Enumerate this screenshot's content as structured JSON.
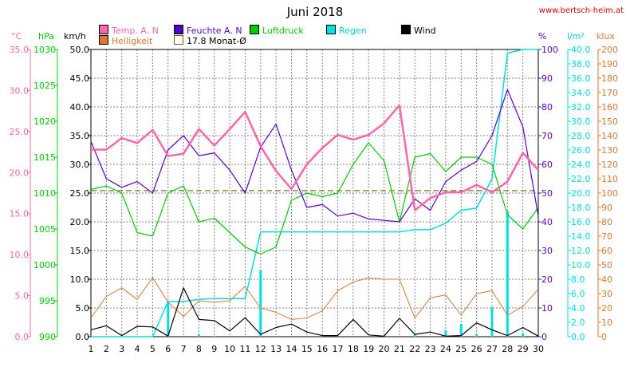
{
  "header": {
    "title": "Juni 2018",
    "url": "www.bertsch-heim.at"
  },
  "colors": {
    "temp": "#ff66aa",
    "humidity": "#5500cc",
    "pressure": "#00cc00",
    "rain": "#00e0e0",
    "wind": "#000000",
    "brightness": "#dd7733",
    "avg": "#666600",
    "grid": "#808080"
  },
  "chart_data": {
    "type": "line",
    "title": "Juni 2018",
    "x": [
      1,
      2,
      3,
      4,
      5,
      6,
      7,
      8,
      9,
      10,
      11,
      12,
      13,
      14,
      15,
      16,
      17,
      18,
      19,
      20,
      21,
      22,
      23,
      24,
      25,
      26,
      27,
      28,
      29,
      30
    ],
    "axes": {
      "temp": {
        "unit": "°C",
        "min": 0,
        "max": 35,
        "step": 5,
        "ticks": [
          "0.0",
          "5.0",
          "10.0",
          "15.0",
          "20.0",
          "25.0",
          "30.0",
          "35.0"
        ]
      },
      "pressure": {
        "unit": "hPa",
        "min": 990,
        "max": 1030,
        "step": 5,
        "ticks": [
          "990",
          "995",
          "1000",
          "1005",
          "1010",
          "1015",
          "1020",
          "1025",
          "1030"
        ]
      },
      "wind": {
        "unit": "km/h",
        "min": 0,
        "max": 50,
        "step": 5,
        "ticks": [
          "0.0",
          "5.0",
          "10.0",
          "15.0",
          "20.0",
          "25.0",
          "30.0",
          "35.0",
          "40.0",
          "45.0",
          "50.0"
        ]
      },
      "humidity": {
        "unit": "%",
        "min": 0,
        "max": 100,
        "step": 10,
        "ticks": [
          "0",
          "10",
          "20",
          "30",
          "40",
          "50",
          "60",
          "70",
          "80",
          "90",
          "100"
        ]
      },
      "rain": {
        "unit": "l/m²",
        "min": 0,
        "max": 40,
        "step": 2,
        "ticks": [
          "0.0",
          "2.0",
          "4.0",
          "6.0",
          "8.0",
          "10.0",
          "12.0",
          "14.0",
          "16.0",
          "18.0",
          "20.0",
          "22.0",
          "24.0",
          "26.0",
          "28.0",
          "30.0",
          "32.0",
          "34.0",
          "36.0",
          "38.0",
          "40.0"
        ]
      },
      "brightness": {
        "unit": "klux",
        "min": 0,
        "max": 200,
        "step": 10,
        "ticks": [
          "0",
          "10",
          "20",
          "30",
          "40",
          "50",
          "60",
          "70",
          "80",
          "90",
          "100",
          "110",
          "120",
          "130",
          "140",
          "150",
          "160",
          "170",
          "180",
          "190",
          "200"
        ]
      }
    },
    "legend": [
      {
        "key": "temp",
        "label": "Temp. A. N"
      },
      {
        "key": "brightness",
        "label": "Helligkeit"
      },
      {
        "key": "humidity",
        "label": "Feuchte A. N"
      },
      {
        "key": "avg",
        "label": "17.8 Monat-Ø"
      },
      {
        "key": "pressure",
        "label": "Luftdruck"
      },
      {
        "key": "rain",
        "label": "Regen"
      },
      {
        "key": "wind",
        "label": "Wind"
      }
    ],
    "series": [
      {
        "key": "temp",
        "axis": "temp",
        "name": "Temp. A. N",
        "values": [
          22.8,
          22.8,
          24.2,
          23.6,
          25.2,
          22.0,
          22.3,
          25.3,
          23.3,
          25.3,
          27.4,
          23.2,
          20.2,
          18.0,
          21.0,
          23.0,
          24.6,
          24.0,
          24.6,
          26.0,
          28.2,
          15.4,
          16.9,
          17.6,
          17.6,
          18.5,
          17.6,
          18.9,
          22.4,
          20.3
        ]
      },
      {
        "key": "humidity",
        "axis": "humidity",
        "name": "Feuchte A. N",
        "values": [
          68,
          55,
          52,
          54,
          50,
          65,
          70,
          63,
          64,
          58,
          50,
          66,
          74,
          58,
          45,
          46,
          42,
          43,
          41,
          40.5,
          40,
          48,
          44,
          54,
          58,
          61,
          70,
          86,
          73,
          42
        ]
      },
      {
        "key": "pressure",
        "axis": "pressure",
        "name": "Luftdruck",
        "values": [
          1010.5,
          1011.0,
          1010.0,
          1004.5,
          1004.0,
          1010.0,
          1011.0,
          1006.0,
          1006.5,
          1004.5,
          1002.5,
          1001.5,
          1002.5,
          1009.0,
          1010.0,
          1009.5,
          1010.0,
          1014.0,
          1017.0,
          1014.5,
          1006.0,
          1015.0,
          1015.5,
          1013.0,
          1015.0,
          1015.0,
          1014.0,
          1007.0,
          1005.0,
          1008.0
        ]
      },
      {
        "key": "rain",
        "axis": "rain",
        "name": "Regen",
        "values": [
          0,
          0,
          0,
          0,
          0,
          4.9,
          4.9,
          5.2,
          5.3,
          5.3,
          5.3,
          14.6,
          14.6,
          14.6,
          14.6,
          14.6,
          14.6,
          14.6,
          14.6,
          14.6,
          14.6,
          14.9,
          14.9,
          15.8,
          17.6,
          17.9,
          22.0,
          39.5,
          40.0,
          40.0
        ]
      },
      {
        "key": "brightness",
        "axis": "brightness",
        "name": "Helligkeit",
        "values": [
          13,
          28,
          34,
          26,
          41,
          24,
          14,
          25,
          24,
          25,
          35,
          20,
          17,
          12,
          13,
          18,
          32,
          38,
          41,
          40,
          40,
          13,
          27,
          29,
          15,
          30,
          32,
          15,
          21,
          33
        ]
      },
      {
        "key": "wind",
        "axis": "wind",
        "name": "Wind",
        "values": [
          1.2,
          1.9,
          0.2,
          1.8,
          1.7,
          0.1,
          8.5,
          3.0,
          2.8,
          1.0,
          3.3,
          0.4,
          1.6,
          2.2,
          0.8,
          0.2,
          0.2,
          3.0,
          0.3,
          0.1,
          3.2,
          0.4,
          0.8,
          0.1,
          0.2,
          2.4,
          1.2,
          0.2,
          1.6,
          0.1
        ]
      }
    ],
    "rain_daily": {
      "axis": "rain",
      "name": "Regen",
      "values": [
        0,
        0,
        0,
        0,
        0,
        4.9,
        0,
        0.3,
        0.1,
        0,
        0,
        9.3,
        0,
        0,
        0,
        0,
        0,
        0,
        0,
        0,
        0,
        0.3,
        0,
        0.9,
        1.8,
        0.3,
        4.1,
        17.5,
        0.5,
        0
      ]
    },
    "monthly_avg": {
      "axis": "temp",
      "value": 17.8,
      "label": "17.8 Monat-Ø"
    }
  }
}
